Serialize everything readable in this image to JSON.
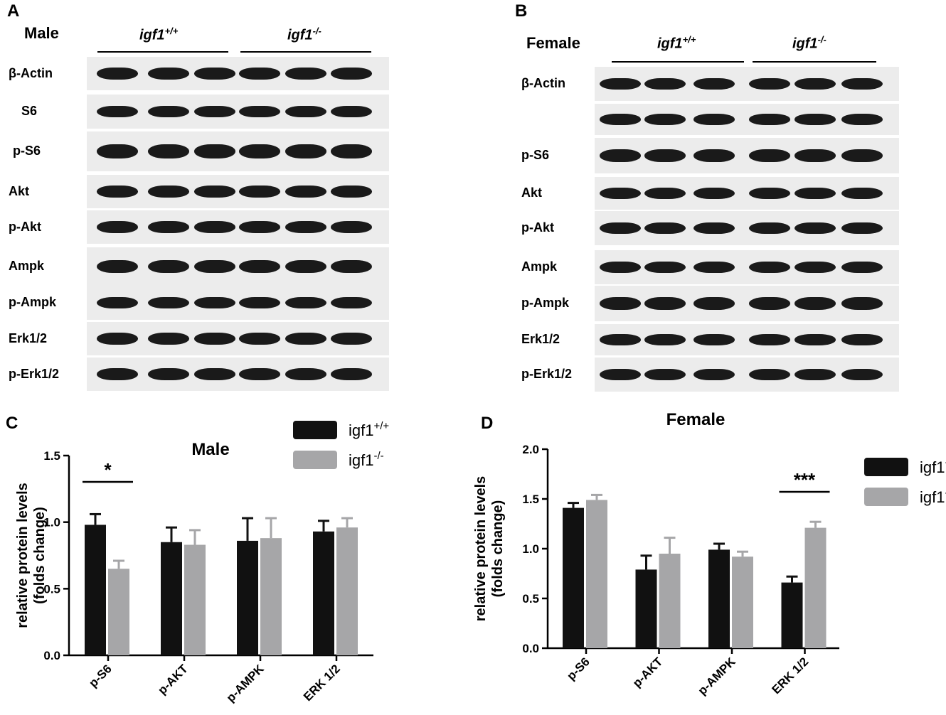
{
  "panels": {
    "A": {
      "letter": "A",
      "title": "Male",
      "group_wt": "igf1",
      "group_wt_sup": "+/+",
      "group_ko": "igf1",
      "group_ko_sup": "-/-",
      "rows": [
        "β-Actin",
        "S6",
        "p-S6",
        "Akt",
        "p-Akt",
        "Ampk",
        "p-Ampk",
        "Erk1/2",
        "p-Erk1/2"
      ]
    },
    "B": {
      "letter": "B",
      "title": "Female",
      "group_wt": "igf1",
      "group_wt_sup": "+/+",
      "group_ko": "igf1",
      "group_ko_sup": "-/-",
      "rows": [
        "β-Actin",
        "",
        "p-S6",
        "Akt",
        "p-Akt",
        "Ampk",
        "p-Ampk",
        "Erk1/2",
        "p-Erk1/2"
      ]
    }
  },
  "chart_data": [
    {
      "panel": "C",
      "type": "bar",
      "title": "Male",
      "ylabel": "relative protein levels (folds change)",
      "ylabel_lines": [
        "relative protein levels",
        "(folds change)"
      ],
      "xlabel": "",
      "categories": [
        "p-S6",
        "p-AKT",
        "p-AMPK",
        "ERK 1/2"
      ],
      "ylim": [
        0,
        1.5
      ],
      "yticks": [
        "0.0",
        "0.5",
        "1.0",
        "1.5"
      ],
      "series": [
        {
          "name": "igf1",
          "name_sup": "+/+",
          "color": "#111111",
          "values": [
            0.98,
            0.85,
            0.86,
            0.93
          ],
          "errors": [
            0.08,
            0.11,
            0.17,
            0.08
          ]
        },
        {
          "name": "igf1",
          "name_sup": "-/-",
          "color": "#a6a6a8",
          "values": [
            0.65,
            0.83,
            0.88,
            0.96
          ],
          "errors": [
            0.06,
            0.11,
            0.15,
            0.07
          ]
        }
      ],
      "legend": "top-right",
      "significance": [
        {
          "category": "p-S6",
          "label": "*"
        }
      ]
    },
    {
      "panel": "D",
      "type": "bar",
      "title": "Female",
      "ylabel": "relative protein levels (folds change)",
      "ylabel_lines": [
        "relative protein levels",
        "(folds change)"
      ],
      "xlabel": "",
      "categories": [
        "p-S6",
        "p-AKT",
        "p-AMPK",
        "ERK 1/2"
      ],
      "ylim": [
        0,
        2.0
      ],
      "yticks": [
        "0.0",
        "0.5",
        "1.0",
        "1.5",
        "2.0"
      ],
      "series": [
        {
          "name": "igf1",
          "name_sup": "+/+",
          "color": "#111111",
          "values": [
            1.41,
            0.79,
            0.99,
            0.66
          ],
          "errors": [
            0.05,
            0.14,
            0.06,
            0.06
          ]
        },
        {
          "name": "igf1",
          "name_sup": "-/-",
          "color": "#a6a6a8",
          "values": [
            1.49,
            0.95,
            0.92,
            1.21
          ],
          "errors": [
            0.05,
            0.16,
            0.05,
            0.06
          ]
        }
      ],
      "legend": "top-right",
      "significance": [
        {
          "category": "ERK 1/2",
          "label": "***"
        }
      ]
    }
  ]
}
